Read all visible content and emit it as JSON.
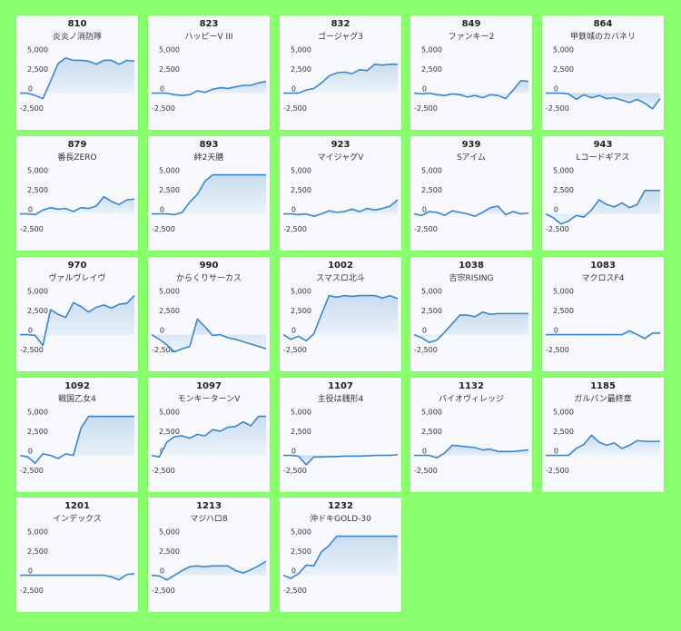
{
  "colors": {
    "background": "#8aff6e",
    "line": "#3a86c8",
    "area_top": "#c9dcef",
    "area_bottom": "#eef4fa",
    "card": "#f6f8fb"
  },
  "y_tick_labels": [
    "5,000",
    "2,500",
    "0",
    "-2,500"
  ],
  "chart_data": [
    {
      "type": "area",
      "number": "810",
      "name": "炎炎ノ消防隊",
      "ylim": [
        -4000,
        6000
      ],
      "values": [
        0,
        0,
        -300,
        -700,
        1500,
        3800,
        4500,
        4200,
        4200,
        4100,
        3700,
        4200,
        4200,
        3700,
        4200,
        4100
      ]
    },
    {
      "type": "area",
      "number": "823",
      "name": "ハッピーV III",
      "ylim": [
        -4000,
        6000
      ],
      "values": [
        0,
        0,
        0,
        -200,
        -300,
        -200,
        300,
        100,
        500,
        700,
        600,
        800,
        1000,
        1000,
        1300,
        1500
      ]
    },
    {
      "type": "area",
      "number": "832",
      "name": "ゴージャグ3",
      "ylim": [
        -4000,
        6000
      ],
      "values": [
        0,
        0,
        0,
        400,
        600,
        1300,
        2200,
        2600,
        2700,
        2500,
        3000,
        2900,
        3700,
        3600,
        3700,
        3700
      ]
    },
    {
      "type": "area",
      "number": "849",
      "name": "ファンキー2",
      "ylim": [
        -4000,
        6000
      ],
      "values": [
        0,
        -100,
        0,
        -200,
        -300,
        -100,
        -200,
        -500,
        -300,
        -600,
        -200,
        -300,
        -700,
        400,
        1600,
        1500
      ]
    },
    {
      "type": "area",
      "number": "864",
      "name": "甲鉄城のカバネリ",
      "ylim": [
        -4000,
        6000
      ],
      "values": [
        0,
        0,
        0,
        -100,
        -800,
        -200,
        -600,
        -300,
        -700,
        -600,
        -900,
        -1200,
        -800,
        -1300,
        -2000,
        -700
      ]
    },
    {
      "type": "area",
      "number": "879",
      "name": "番長ZERO",
      "ylim": [
        -4000,
        6000
      ],
      "values": [
        0,
        0,
        -100,
        500,
        800,
        600,
        700,
        300,
        800,
        700,
        1000,
        2200,
        1600,
        1200,
        1800,
        1900
      ]
    },
    {
      "type": "area",
      "number": "893",
      "name": "絆2天膳",
      "ylim": [
        -4000,
        6000
      ],
      "values": [
        0,
        0,
        0,
        -100,
        200,
        1500,
        2500,
        4200,
        5000,
        5000,
        5000,
        5000,
        5000,
        5000,
        5000,
        5000
      ]
    },
    {
      "type": "area",
      "number": "923",
      "name": "マイジャグV",
      "ylim": [
        -4000,
        6000
      ],
      "values": [
        0,
        0,
        -100,
        0,
        -300,
        0,
        400,
        200,
        300,
        600,
        300,
        700,
        500,
        700,
        1000,
        1800
      ]
    },
    {
      "type": "area",
      "number": "939",
      "name": "Sアイム",
      "ylim": [
        -4000,
        6000
      ],
      "values": [
        0,
        -200,
        300,
        200,
        -200,
        400,
        200,
        0,
        -300,
        200,
        800,
        1000,
        -100,
        300,
        0,
        100
      ]
    },
    {
      "type": "area",
      "number": "943",
      "name": "Lコードギアス",
      "ylim": [
        -4000,
        6000
      ],
      "values": [
        0,
        -500,
        -1300,
        -900,
        -200,
        -400,
        500,
        1800,
        1200,
        900,
        1400,
        800,
        1200,
        3000,
        3000,
        3000
      ]
    },
    {
      "type": "area",
      "number": "970",
      "name": "ヴァルヴレイヴ",
      "ylim": [
        -4000,
        6000
      ],
      "values": [
        0,
        0,
        -100,
        -1400,
        3200,
        2600,
        2200,
        4100,
        3600,
        2900,
        3500,
        3800,
        3400,
        3900,
        4000,
        5000
      ]
    },
    {
      "type": "area",
      "number": "990",
      "name": "からくりサーカス",
      "ylim": [
        -4000,
        6000
      ],
      "values": [
        0,
        -600,
        -1300,
        -2200,
        -1800,
        -1500,
        2000,
        1000,
        -100,
        0,
        -400,
        -600,
        -900,
        -1200,
        -1500,
        -1800
      ]
    },
    {
      "type": "area",
      "number": "1002",
      "name": "スマスロ北斗",
      "ylim": [
        -4000,
        6000
      ],
      "values": [
        0,
        -600,
        -200,
        -800,
        100,
        2600,
        5000,
        4800,
        5000,
        4900,
        5000,
        5000,
        5000,
        4700,
        5000,
        4600
      ]
    },
    {
      "type": "area",
      "number": "1038",
      "name": "吉宗RISING",
      "ylim": [
        -4000,
        6000
      ],
      "values": [
        0,
        -400,
        -1000,
        -700,
        300,
        1400,
        2500,
        2500,
        2300,
        2900,
        2600,
        2700,
        2700,
        2700,
        2700,
        2700
      ]
    },
    {
      "type": "area",
      "number": "1083",
      "name": "マクロスF4",
      "ylim": [
        -4000,
        6000
      ],
      "values": [
        0,
        0,
        0,
        0,
        0,
        0,
        0,
        0,
        0,
        0,
        0,
        500,
        0,
        -500,
        200,
        200
      ]
    },
    {
      "type": "area",
      "number": "1092",
      "name": "戦国乙女4",
      "ylim": [
        -4000,
        6000
      ],
      "values": [
        0,
        -200,
        -1000,
        200,
        0,
        -400,
        200,
        0,
        3500,
        5000,
        5000,
        5000,
        5000,
        5000,
        5000,
        5000
      ]
    },
    {
      "type": "area",
      "number": "1097",
      "name": "モンキーターンV",
      "ylim": [
        -4000,
        6000
      ],
      "values": [
        0,
        -200,
        1700,
        2400,
        2500,
        2200,
        2700,
        2500,
        3300,
        3100,
        3600,
        3700,
        4300,
        3800,
        5000,
        5000
      ]
    },
    {
      "type": "area",
      "number": "1107",
      "name": "主役は銭形4",
      "ylim": [
        -4000,
        6000
      ],
      "values": [
        0,
        0,
        -100,
        -1200,
        -200,
        -200,
        -150,
        -150,
        -100,
        -100,
        -100,
        -50,
        0,
        0,
        0,
        100
      ]
    },
    {
      "type": "area",
      "number": "1132",
      "name": "バイオヴィレッジ",
      "ylim": [
        -4000,
        6000
      ],
      "values": [
        0,
        0,
        0,
        -300,
        300,
        1300,
        1200,
        1100,
        1000,
        700,
        800,
        500,
        500,
        500,
        600,
        700
      ]
    },
    {
      "type": "area",
      "number": "1185",
      "name": "ガルパン最終章",
      "ylim": [
        -4000,
        6000
      ],
      "values": [
        0,
        0,
        0,
        0,
        900,
        1400,
        2600,
        1700,
        1300,
        1600,
        900,
        1300,
        1900,
        1800,
        1800,
        1800
      ]
    },
    {
      "type": "area",
      "number": "1201",
      "name": "インデックス",
      "ylim": [
        -4000,
        6000
      ],
      "values": [
        0,
        0,
        0,
        0,
        0,
        0,
        0,
        0,
        0,
        0,
        0,
        0,
        -200,
        -600,
        100,
        200
      ]
    },
    {
      "type": "area",
      "number": "1213",
      "name": "マジハロ8",
      "ylim": [
        -4000,
        6000
      ],
      "values": [
        0,
        -100,
        -600,
        0,
        600,
        1100,
        1200,
        1100,
        1200,
        1200,
        1200,
        600,
        300,
        700,
        1200,
        1800
      ]
    },
    {
      "type": "area",
      "number": "1232",
      "name": "沖ドキGOLD-30",
      "ylim": [
        -4000,
        6000
      ],
      "values": [
        0,
        -400,
        200,
        1300,
        1200,
        3000,
        3800,
        5000,
        5000,
        5000,
        5000,
        5000,
        5000,
        5000,
        5000,
        5000
      ]
    }
  ]
}
